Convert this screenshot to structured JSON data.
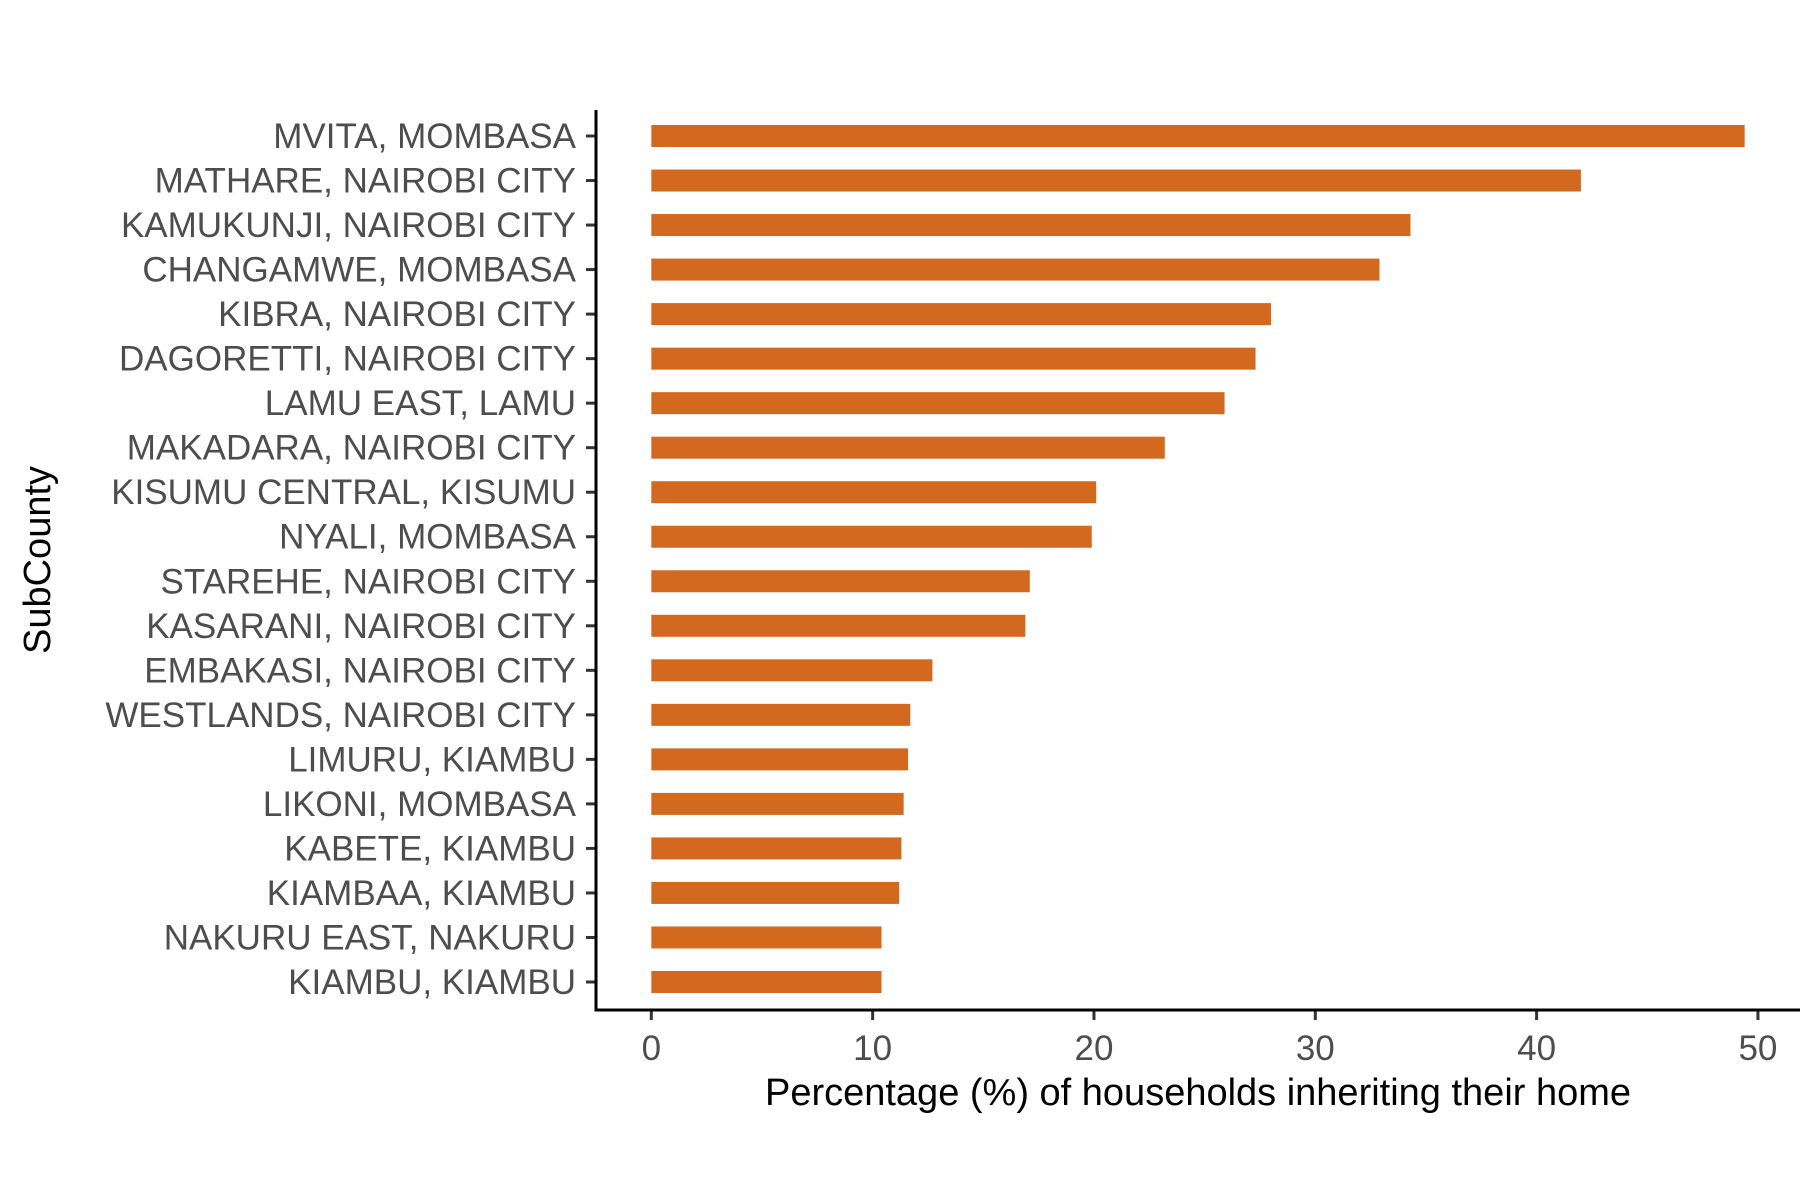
{
  "chart_data": {
    "type": "bar",
    "orientation": "horizontal",
    "categories": [
      "MVITA, MOMBASA",
      "MATHARE, NAIROBI CITY",
      "KAMUKUNJI, NAIROBI CITY",
      "CHANGAMWE, MOMBASA",
      "KIBRA, NAIROBI CITY",
      "DAGORETTI, NAIROBI CITY",
      "LAMU EAST, LAMU",
      "MAKADARA, NAIROBI CITY",
      "KISUMU CENTRAL, KISUMU",
      "NYALI, MOMBASA",
      "STAREHE, NAIROBI CITY",
      "KASARANI, NAIROBI CITY",
      "EMBAKASI, NAIROBI CITY",
      "WESTLANDS, NAIROBI CITY",
      "LIMURU, KIAMBU",
      "LIKONI, MOMBASA",
      "KABETE, KIAMBU",
      "KIAMBAA, KIAMBU",
      "NAKURU EAST, NAKURU",
      "KIAMBU, KIAMBU"
    ],
    "values": [
      49.4,
      42.0,
      34.3,
      32.9,
      28.0,
      27.3,
      25.9,
      23.2,
      20.1,
      19.9,
      17.1,
      16.9,
      12.7,
      11.7,
      11.6,
      11.4,
      11.3,
      11.2,
      10.4,
      10.4
    ],
    "xlabel": "Percentage (%) of households inheriting their home",
    "ylabel": "SubCounty",
    "xlim": [
      -2.5,
      51.9
    ],
    "xticks": [
      0,
      10,
      20,
      30,
      40,
      50
    ],
    "bar_color": "#D2691E",
    "grid": false,
    "legend": "none"
  }
}
